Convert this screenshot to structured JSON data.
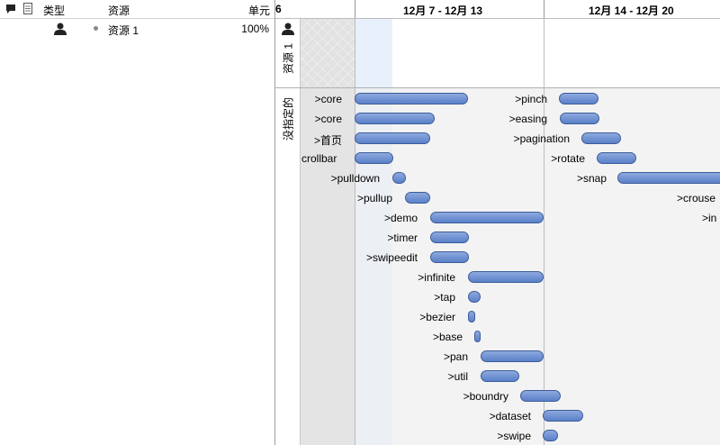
{
  "left_header": {
    "type_label": "类型",
    "resource_label": "资源",
    "unit_label": "单元"
  },
  "resource_row": {
    "name": "资源 1",
    "unit": "100%"
  },
  "timeline": {
    "partial_week": "6",
    "weeks": [
      "12月 7 - 12月 13",
      "12月 14 - 12月 20"
    ]
  },
  "sections": {
    "resource1": "资源 1",
    "unassigned": "没指定的"
  },
  "tasks": [
    {
      "name": ">core"
    },
    {
      "name": ">core"
    },
    {
      "name": ">首页"
    },
    {
      "name": "crollbar"
    },
    {
      "name": ">pulldown"
    },
    {
      "name": ">pullup"
    },
    {
      "name": ">demo"
    },
    {
      "name": ">timer"
    },
    {
      "name": ">swipeedit"
    },
    {
      "name": ">infinite"
    },
    {
      "name": ">tap"
    },
    {
      "name": ">bezier"
    },
    {
      "name": ">base"
    },
    {
      "name": ">pan"
    },
    {
      "name": ">util"
    },
    {
      "name": ">boundry"
    },
    {
      "name": ">dataset"
    },
    {
      "name": ">swipe"
    },
    {
      "name": ">pinch"
    },
    {
      "name": ">easing"
    },
    {
      "name": ">pagination"
    },
    {
      "name": ">rotate"
    },
    {
      "name": ">snap"
    },
    {
      "name": ">crouse"
    },
    {
      "name": ">in"
    }
  ]
}
